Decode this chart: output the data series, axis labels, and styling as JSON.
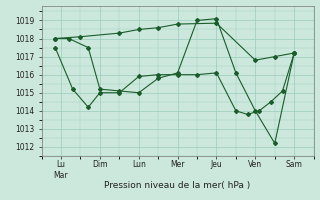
{
  "xlabel": "Pression niveau de la mer( hPa )",
  "background_color": "#cce8dc",
  "grid_color": "#99ccbb",
  "line_color": "#1a5c2a",
  "xlim": [
    0.0,
    7.0
  ],
  "ylim": [
    1011.5,
    1019.8
  ],
  "yticks": [
    1012,
    1013,
    1014,
    1015,
    1016,
    1017,
    1018,
    1019
  ],
  "xtick_labels": [
    "Lu\nMar",
    "Dim",
    "Lun",
    "Mer",
    "Jeu",
    "Ven",
    "Sam"
  ],
  "xtick_positions": [
    0.5,
    1.5,
    2.5,
    3.5,
    4.5,
    5.5,
    6.5
  ],
  "lines": [
    {
      "x": [
        0.35,
        1.0,
        2.0,
        2.5,
        3.0,
        3.5,
        4.5,
        5.5,
        6.0,
        6.5
      ],
      "y": [
        1018.0,
        1018.1,
        1018.3,
        1018.5,
        1018.6,
        1018.8,
        1018.85,
        1016.8,
        1017.0,
        1017.2
      ]
    },
    {
      "x": [
        0.35,
        0.7,
        1.2,
        1.5,
        2.0,
        2.5,
        3.0,
        3.5,
        4.0,
        4.5,
        5.0,
        5.5,
        6.0,
        6.5
      ],
      "y": [
        1018.0,
        1018.0,
        1017.5,
        1015.2,
        1015.1,
        1015.0,
        1015.8,
        1016.1,
        1019.0,
        1019.1,
        1016.1,
        1014.0,
        1012.2,
        1017.2
      ]
    },
    {
      "x": [
        0.35,
        0.8,
        1.2,
        1.5,
        2.0,
        2.5,
        3.0,
        3.5,
        4.0,
        4.5,
        5.0,
        5.3,
        5.6,
        5.9,
        6.2,
        6.5
      ],
      "y": [
        1017.5,
        1015.2,
        1014.2,
        1015.0,
        1015.0,
        1015.9,
        1016.0,
        1016.0,
        1016.0,
        1016.1,
        1014.0,
        1013.8,
        1014.0,
        1014.5,
        1015.1,
        1017.2
      ]
    }
  ]
}
